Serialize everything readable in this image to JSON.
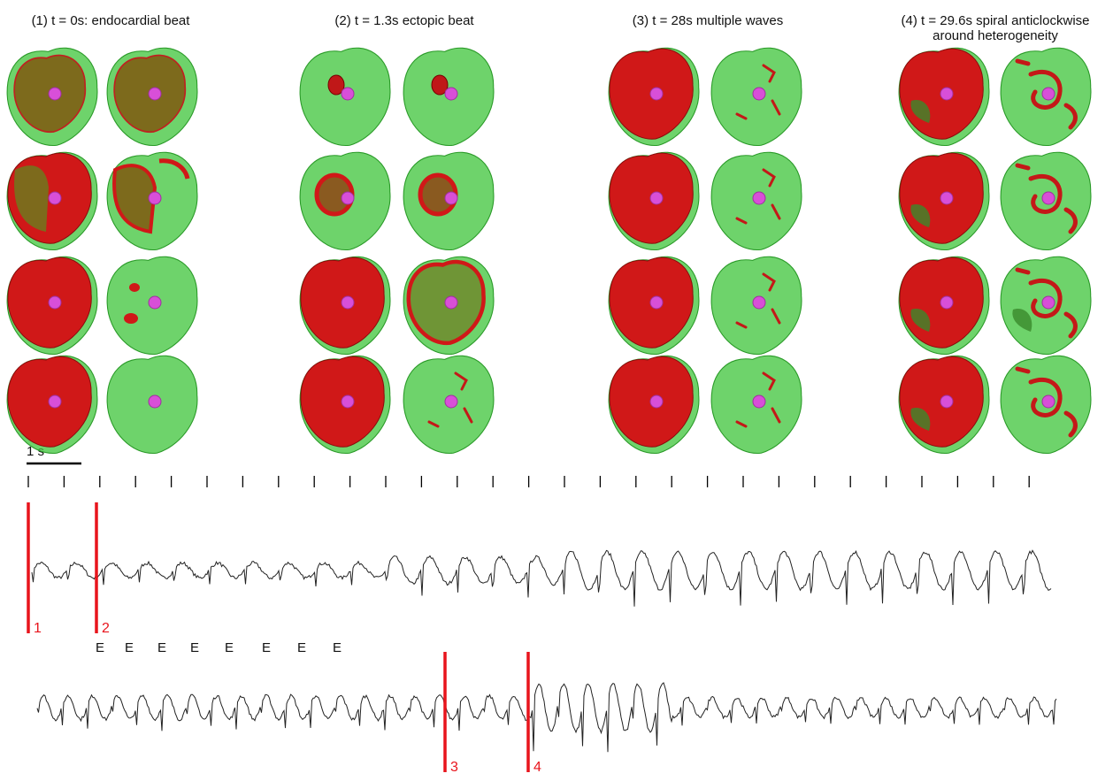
{
  "figure": {
    "panels": [
      {
        "title_lines": [
          "(1) t = 0s: endocardial beat"
        ]
      },
      {
        "title_lines": [
          "(2) t = 1.3s ectopic beat"
        ]
      },
      {
        "title_lines": [
          "(3) t = 28s multiple waves"
        ]
      },
      {
        "title_lines": [
          "(4) t = 29.6s spiral anticlockwise",
          "around heterogeneity"
        ]
      }
    ],
    "scale_bar": "1 s",
    "markers": [
      "1",
      "2",
      "3",
      "4"
    ],
    "ectopic_labels": [
      "E",
      "E",
      "E",
      "E",
      "E",
      "E",
      "E",
      "E"
    ]
  }
}
